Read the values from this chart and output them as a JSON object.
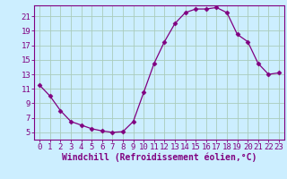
{
  "x": [
    0,
    1,
    2,
    3,
    4,
    5,
    6,
    7,
    8,
    9,
    10,
    11,
    12,
    13,
    14,
    15,
    16,
    17,
    18,
    19,
    20,
    21,
    22,
    23
  ],
  "y": [
    11.5,
    10.0,
    8.0,
    6.5,
    6.0,
    5.5,
    5.2,
    5.0,
    5.1,
    6.5,
    10.5,
    14.5,
    17.5,
    20.0,
    21.5,
    22.0,
    22.0,
    22.2,
    21.5,
    18.5,
    17.5,
    14.5,
    13.0,
    13.2
  ],
  "ylim": [
    4,
    22.5
  ],
  "xlim": [
    -0.5,
    23.5
  ],
  "yticks": [
    5,
    7,
    9,
    11,
    13,
    15,
    17,
    19,
    21
  ],
  "xticks": [
    0,
    1,
    2,
    3,
    4,
    5,
    6,
    7,
    8,
    9,
    10,
    11,
    12,
    13,
    14,
    15,
    16,
    17,
    18,
    19,
    20,
    21,
    22,
    23
  ],
  "xlabel": "Windchill (Refroidissement éolien,°C)",
  "line_color": "#800080",
  "marker": "D",
  "marker_size": 2.5,
  "bg_color": "#cceeff",
  "grid_color": "#aaccbb",
  "xlabel_fontsize": 7,
  "tick_fontsize": 6.5
}
